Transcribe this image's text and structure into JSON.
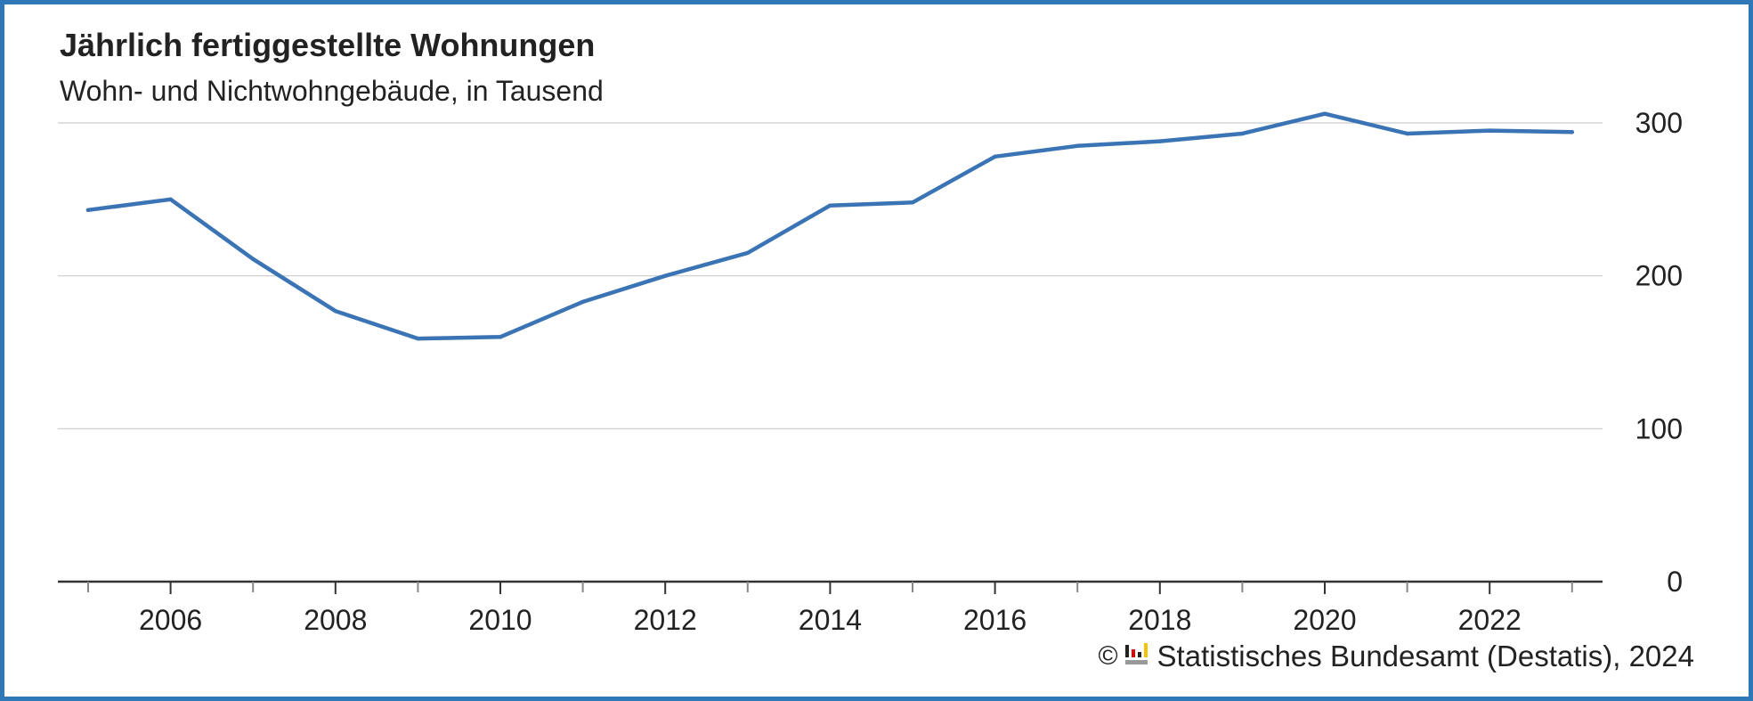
{
  "chart_data": {
    "type": "line",
    "title": "Jährlich fertiggestellte Wohnungen",
    "subtitle": "Wohn- und Nichtwohngebäude, in Tausend",
    "xlabel": "",
    "ylabel": "",
    "x": [
      2005,
      2006,
      2007,
      2008,
      2009,
      2010,
      2011,
      2012,
      2013,
      2014,
      2015,
      2016,
      2017,
      2018,
      2019,
      2020,
      2021,
      2022,
      2023
    ],
    "x_tick_labels": [
      "2006",
      "2008",
      "2010",
      "2012",
      "2014",
      "2016",
      "2018",
      "2020",
      "2022"
    ],
    "y_tick_labels": [
      "0",
      "100",
      "200",
      "300"
    ],
    "ylim": [
      0,
      300
    ],
    "grid": true,
    "y_axis_side": "right",
    "series": [
      {
        "values": [
          243,
          250,
          211,
          177,
          159,
          160,
          183,
          200,
          215,
          246,
          248,
          278,
          285,
          288,
          293,
          306,
          293,
          295,
          294
        ]
      }
    ],
    "line_color": "#3b74b5",
    "grid_color": "#cccccc"
  },
  "source": {
    "copyright": "©",
    "text": "Statistisches Bundesamt (Destatis), 2024"
  },
  "colors": {
    "frame": "#2f78b8"
  }
}
